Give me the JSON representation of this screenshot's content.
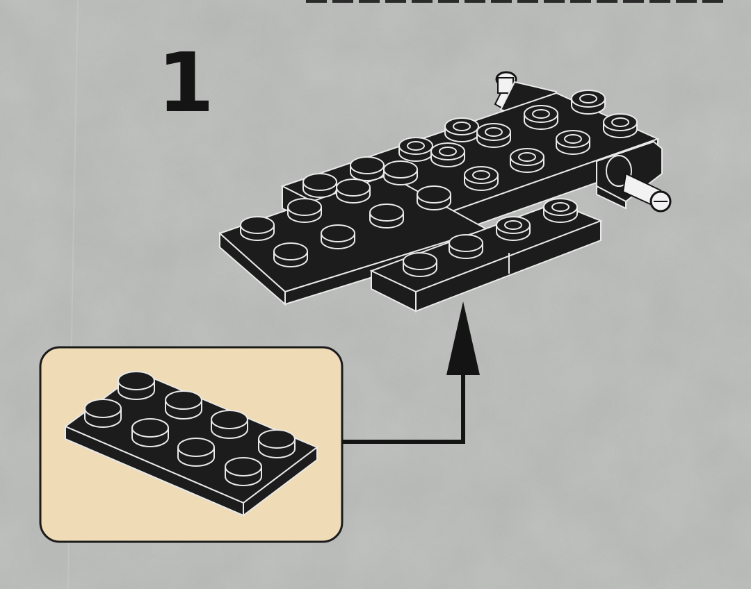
{
  "step": {
    "number": "1"
  },
  "colors": {
    "page_background": "#a9aba9",
    "callout_background": "#efdcb6",
    "brick_color": "#1c1c1c",
    "brick_outline": "#e9e9e9",
    "axle_color": "#f2f2f2",
    "arrow_color": "#141414"
  },
  "icons": {
    "assembly": "black-lego-car-chassis-icon",
    "new_part": "black-lego-plate-2x4-icon",
    "placement_arrow": "arrow-up-icon"
  }
}
